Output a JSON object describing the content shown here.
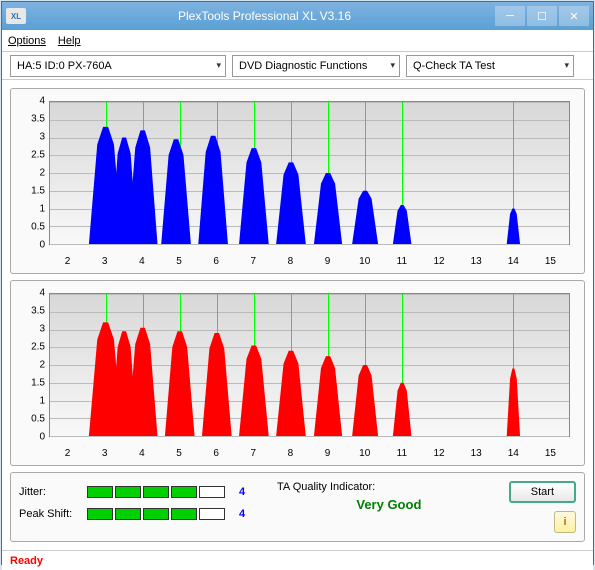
{
  "window": {
    "title": "PlexTools Professional XL V3.16",
    "icon_text": "XL"
  },
  "menu": {
    "options": "Options",
    "help": "Help"
  },
  "dropdowns": {
    "device": "HA:5 ID:0   PX-760A",
    "function": "DVD Diagnostic Functions",
    "test": "Q-Check TA Test"
  },
  "charts": {
    "ylim": [
      0,
      4
    ],
    "ytick_step": 0.5,
    "yticks": [
      "0",
      "0.5",
      "1",
      "1.5",
      "2",
      "2.5",
      "3",
      "3.5",
      "4"
    ],
    "xlim": [
      1.5,
      15.5
    ],
    "xticks": [
      2,
      3,
      4,
      5,
      6,
      7,
      8,
      9,
      10,
      11,
      12,
      13,
      14,
      15
    ],
    "grid_x": [
      3,
      4,
      5,
      6,
      7,
      8,
      9,
      10,
      11,
      14
    ],
    "bg_gradient_top": "#d8d8d8",
    "bg_gradient_bottom": "#f8f8f8",
    "grid_v_color": "#00ff00",
    "top": {
      "fill": "#0000ff",
      "peaks": [
        {
          "c": 3,
          "h": 3.3,
          "w": 0.45
        },
        {
          "c": 3.5,
          "h": 3.0,
          "w": 0.35
        },
        {
          "c": 4,
          "h": 3.2,
          "w": 0.4
        },
        {
          "c": 4.9,
          "h": 2.95,
          "w": 0.4
        },
        {
          "c": 5.9,
          "h": 3.05,
          "w": 0.4
        },
        {
          "c": 7,
          "h": 2.7,
          "w": 0.4
        },
        {
          "c": 8,
          "h": 2.3,
          "w": 0.4
        },
        {
          "c": 9,
          "h": 2.0,
          "w": 0.38
        },
        {
          "c": 10,
          "h": 1.5,
          "w": 0.35
        },
        {
          "c": 11,
          "h": 1.1,
          "w": 0.25
        },
        {
          "c": 14,
          "h": 1.0,
          "w": 0.18
        }
      ]
    },
    "bottom": {
      "fill": "#ff0000",
      "peaks": [
        {
          "c": 3,
          "h": 3.2,
          "w": 0.45
        },
        {
          "c": 3.5,
          "h": 2.95,
          "w": 0.35
        },
        {
          "c": 4,
          "h": 3.05,
          "w": 0.4
        },
        {
          "c": 5,
          "h": 2.95,
          "w": 0.4
        },
        {
          "c": 6,
          "h": 2.9,
          "w": 0.4
        },
        {
          "c": 7,
          "h": 2.55,
          "w": 0.4
        },
        {
          "c": 8,
          "h": 2.4,
          "w": 0.4
        },
        {
          "c": 9,
          "h": 2.25,
          "w": 0.38
        },
        {
          "c": 10,
          "h": 2.0,
          "w": 0.35
        },
        {
          "c": 11,
          "h": 1.5,
          "w": 0.25
        },
        {
          "c": 14,
          "h": 1.9,
          "w": 0.18
        }
      ]
    }
  },
  "metrics": {
    "jitter": {
      "label": "Jitter:",
      "value": "4",
      "segments_on": 4,
      "segments_total": 5
    },
    "peakshift": {
      "label": "Peak Shift:",
      "value": "4",
      "segments_on": 4,
      "segments_total": 5
    },
    "ta": {
      "label": "TA Quality Indicator:",
      "value": "Very Good",
      "value_color": "#008000"
    }
  },
  "buttons": {
    "start": "Start",
    "info": "i"
  },
  "status": {
    "text": "Ready",
    "color": "#ff0000"
  }
}
